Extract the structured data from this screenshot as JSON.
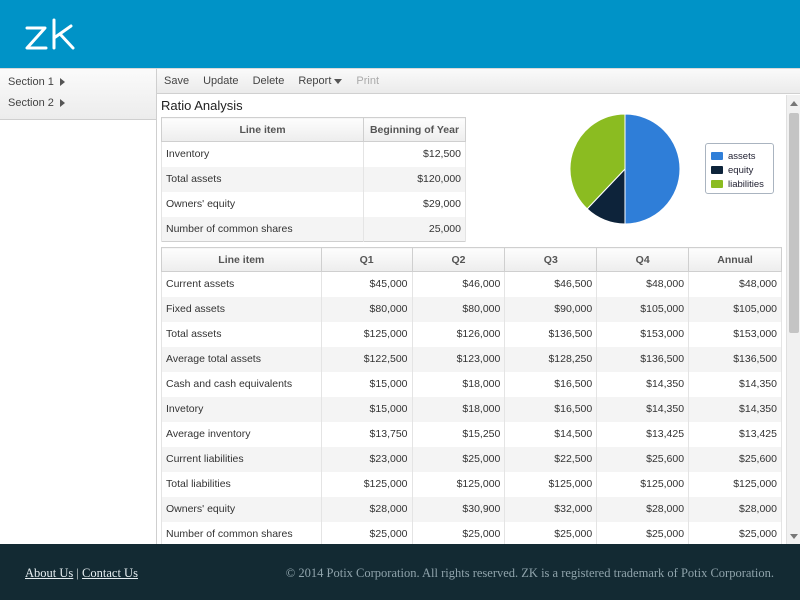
{
  "header": {
    "logo_text": "zk",
    "brand_color": "#0093c7"
  },
  "sidebar": {
    "items": [
      {
        "label": "Section 1"
      },
      {
        "label": "Section 2"
      }
    ]
  },
  "toolbar": {
    "save_label": "Save",
    "update_label": "Update",
    "delete_label": "Delete",
    "report_label": "Report",
    "print_label": "Print"
  },
  "page": {
    "title": "Ratio Analysis"
  },
  "summary_table": {
    "headers": [
      "Line item",
      "Beginning of Year"
    ],
    "rows": [
      [
        "Inventory",
        "$12,500"
      ],
      [
        "Total assets",
        "$120,000"
      ],
      [
        "Owners' equity",
        "$29,000"
      ],
      [
        "Number of common shares",
        "25,000"
      ]
    ]
  },
  "chart_data": {
    "type": "pie",
    "title": "",
    "slices": [
      {
        "label": "assets",
        "value": 120000,
        "color": "#2f7ed8"
      },
      {
        "label": "equity",
        "value": 29000,
        "color": "#0d233a"
      },
      {
        "label": "liabilities",
        "value": 91000,
        "color": "#8bbc21"
      }
    ],
    "legend_placement": "right"
  },
  "quarterly_table": {
    "headers": [
      "Line item",
      "Q1",
      "Q2",
      "Q3",
      "Q4",
      "Annual"
    ],
    "rows": [
      [
        "Current assets",
        "$45,000",
        "$46,000",
        "$46,500",
        "$48,000",
        "$48,000"
      ],
      [
        "Fixed assets",
        "$80,000",
        "$80,000",
        "$90,000",
        "$105,000",
        "$105,000"
      ],
      [
        "Total assets",
        "$125,000",
        "$126,000",
        "$136,500",
        "$153,000",
        "$153,000"
      ],
      [
        "Average total assets",
        "$122,500",
        "$123,000",
        "$128,250",
        "$136,500",
        "$136,500"
      ],
      [
        "Cash and cash equivalents",
        "$15,000",
        "$18,000",
        "$16,500",
        "$14,350",
        "$14,350"
      ],
      [
        "Invetory",
        "$15,000",
        "$18,000",
        "$16,500",
        "$14,350",
        "$14,350"
      ],
      [
        "Average inventory",
        "$13,750",
        "$15,250",
        "$14,500",
        "$13,425",
        "$13,425"
      ],
      [
        "Current liabilities",
        "$23,000",
        "$25,000",
        "$22,500",
        "$25,600",
        "$25,600"
      ],
      [
        "Total liabilities",
        "$125,000",
        "$125,000",
        "$125,000",
        "$125,000",
        "$125,000"
      ],
      [
        "Owners' equity",
        "$28,000",
        "$30,900",
        "$32,000",
        "$28,000",
        "$28,000"
      ],
      [
        "Number of common shares",
        "$25,000",
        "$25,000",
        "$25,000",
        "$25,000",
        "$25,000"
      ]
    ]
  },
  "footer": {
    "about_label": "About Us",
    "separator": "|",
    "contact_label": "Contact Us",
    "copyright": "© 2014 Potix Corporation. All rights reserved. ZK is a registered trademark of Potix Corporation."
  }
}
